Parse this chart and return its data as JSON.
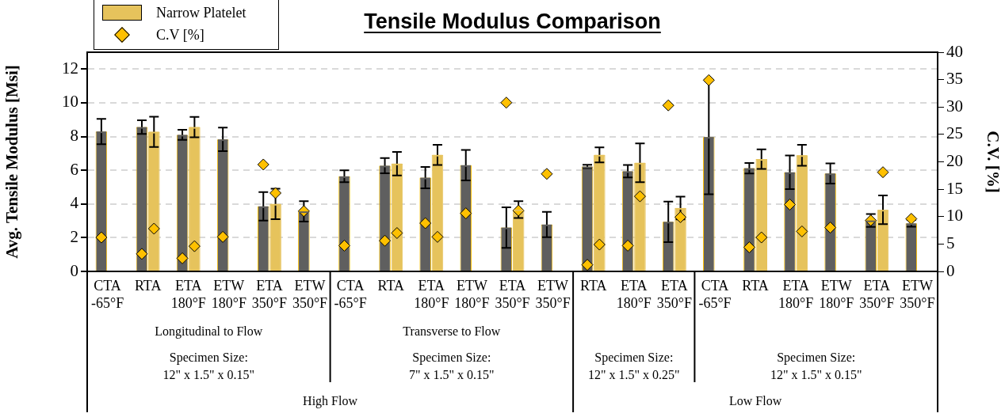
{
  "chart_data": {
    "type": "bar",
    "title": "Tensile Modulus Comparison",
    "ylabel": "Avg. Tensile Modulus [Msi]",
    "y2label": "C.V. [%]",
    "categories": [
      "CTA\n-65°F",
      "RTA",
      "ETA\n180°F",
      "ETW\n180°F",
      "ETA\n350°F",
      "ETW\n350°F",
      "CTA\n-65°F",
      "RTA",
      "ETA\n180°F",
      "ETW\n180°F",
      "ETA\n350°F",
      "ETW\n350°F",
      "RTA",
      "ETA\n180°F",
      "ETA\n350°F",
      "CTA\n-65°F",
      "RTA",
      "ETA\n180°F",
      "ETW\n180°F",
      "ETA\n350°F",
      "ETW\n350°F"
    ],
    "series": [
      {
        "color": "#5f5f5f",
        "values": [
          8.3,
          8.56,
          8.1,
          7.83,
          3.86,
          3.56,
          5.64,
          6.27,
          5.56,
          6.3,
          2.6,
          2.78,
          6.22,
          5.94,
          2.94,
          7.97,
          6.12,
          5.88,
          5.81,
          3.02,
          2.85
        ],
        "errors": [
          0.75,
          0.4,
          0.3,
          0.7,
          0.85,
          0.6,
          0.35,
          0.45,
          0.63,
          0.9,
          1.2,
          0.75,
          0.1,
          0.37,
          1.2,
          3.4,
          0.31,
          1.0,
          0.6,
          0.38,
          0.2
        ]
      },
      {
        "name": "Narrow Platelet",
        "color": "#e6c35c",
        "values": [
          null,
          8.28,
          8.56,
          null,
          4.0,
          null,
          null,
          6.39,
          6.91,
          null,
          3.67,
          null,
          6.91,
          6.44,
          3.76,
          null,
          6.66,
          6.89,
          null,
          3.65,
          null
        ],
        "errors": [
          null,
          0.9,
          0.6,
          null,
          0.9,
          null,
          null,
          0.7,
          0.6,
          null,
          0.5,
          null,
          0.45,
          1.15,
          0.67,
          null,
          0.58,
          0.62,
          null,
          0.85,
          null
        ]
      },
      {
        "type": "scatter",
        "name": "C.V [%]",
        "axis": "y2",
        "marker": "diamond",
        "color": "#ffc000",
        "values": [
          6.2,
          3.2,
          2.4,
          6.3,
          19.5,
          11.0,
          4.7,
          5.6,
          8.8,
          10.6,
          30.8,
          17.8,
          1.2,
          4.7,
          30.3,
          34.9,
          4.4,
          12.2,
          8.0,
          9.3,
          9.6
        ]
      },
      {
        "type": "scatter",
        "axis": "y2",
        "marker": "diamond",
        "color": "#ffc000",
        "values": [
          null,
          7.8,
          4.6,
          null,
          14.3,
          null,
          null,
          7.0,
          6.3,
          null,
          11.1,
          null,
          4.9,
          13.7,
          9.9,
          null,
          6.2,
          7.3,
          null,
          18.1,
          null
        ]
      }
    ],
    "ylim": [
      0,
      13
    ],
    "yticks": [
      0,
      2,
      4,
      6,
      8,
      10,
      12
    ],
    "y2lim": [
      0,
      40
    ],
    "y2ticks": [
      0,
      5,
      10,
      15,
      20,
      25,
      30,
      35,
      40
    ],
    "grid": "y",
    "legend": "top left",
    "annotations": [
      "Longitudinal to Flow",
      "Transverse to Flow",
      "Specimen Size:\n12\" x 1.5\" x 0.15\"",
      "Specimen Size:\n7\" x 1.5\" x 0.15\"",
      "Specimen Size:\n12\" x 1.5\" x 0.25\"",
      "Specimen Size:\n12\" x 1.5\" x 0.15\"",
      "High Flow",
      "Low Flow"
    ]
  }
}
